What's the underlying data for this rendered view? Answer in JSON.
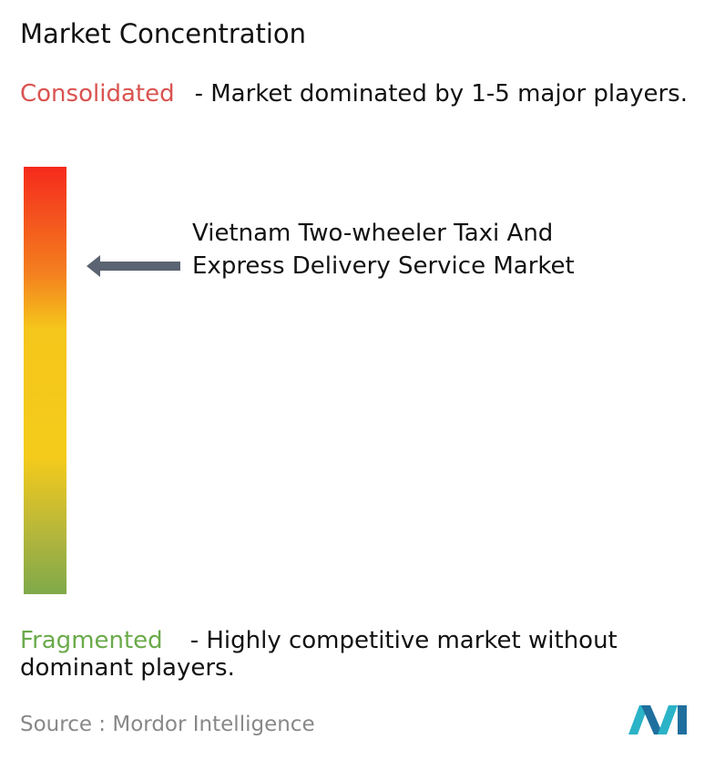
{
  "header": {
    "title": "Market Concentration"
  },
  "consolidated": {
    "label": "Consolidated",
    "description": "- Market dominated by 1-5 major players."
  },
  "fragmented": {
    "label": "Fragmented",
    "description": "- Highly competitive market without dominant players."
  },
  "market": {
    "name": "Vietnam Two-wheeler Taxi And Express Delivery Service Market"
  },
  "footer": {
    "source": "Source :  Mordor Intelligence"
  }
}
